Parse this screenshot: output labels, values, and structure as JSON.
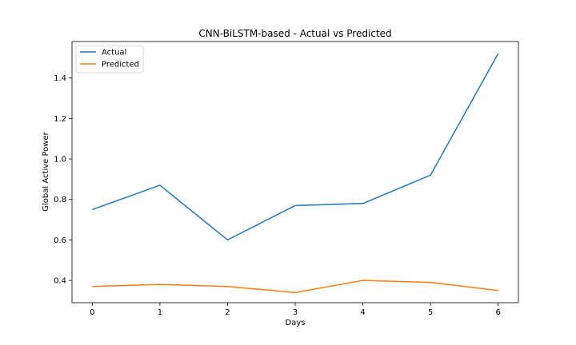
{
  "chart_data": {
    "type": "line",
    "title": "CNN-BiLSTM-based - Actual vs Predicted",
    "xlabel": "Days",
    "ylabel": "Global Active Power",
    "x": [
      0,
      1,
      2,
      3,
      4,
      5,
      6
    ],
    "xlim": [
      -0.3,
      6.3
    ],
    "ylim": [
      0.29,
      1.58
    ],
    "xticks": [
      "0",
      "1",
      "2",
      "3",
      "4",
      "5",
      "6"
    ],
    "yticks": [
      "0.4",
      "0.6",
      "0.8",
      "1.0",
      "1.2",
      "1.4"
    ],
    "grid": false,
    "legend_position": "top-left",
    "series": [
      {
        "name": "Actual",
        "color": "#1f77b4",
        "values": [
          0.75,
          0.87,
          0.6,
          0.77,
          0.78,
          0.92,
          1.52
        ]
      },
      {
        "name": "Predicted",
        "color": "#ff7f0e",
        "values": [
          0.37,
          0.38,
          0.37,
          0.34,
          0.4,
          0.39,
          0.35
        ]
      }
    ]
  }
}
